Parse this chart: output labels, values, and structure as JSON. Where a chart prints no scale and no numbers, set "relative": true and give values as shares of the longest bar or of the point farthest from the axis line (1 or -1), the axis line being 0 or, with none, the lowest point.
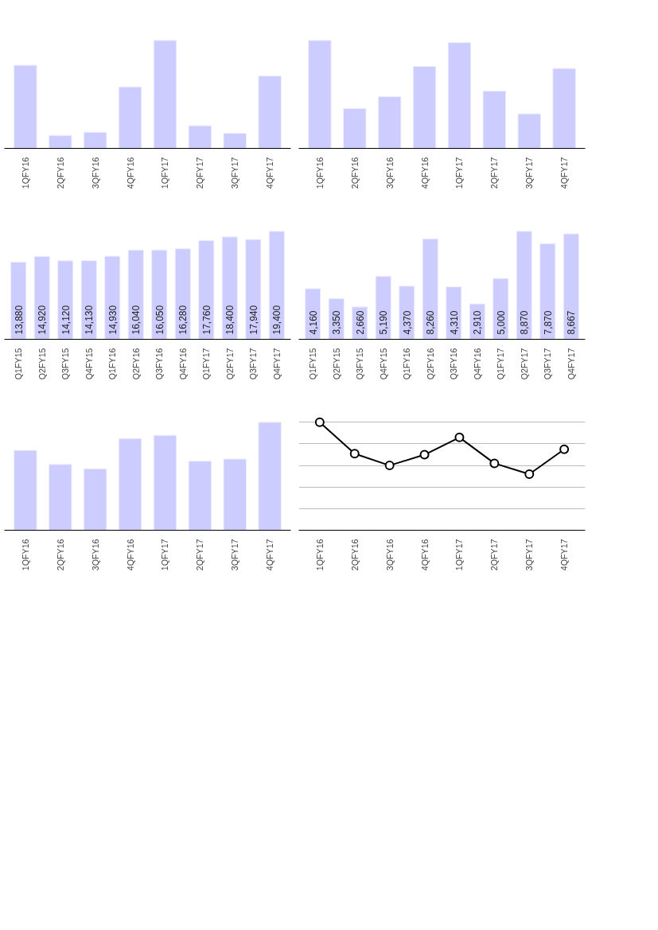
{
  "chart_data": [
    {
      "type": "bar",
      "relative": true,
      "categories": [
        "1QFY16",
        "2QFY16",
        "3QFY16",
        "4QFY16",
        "1QFY17",
        "2QFY17",
        "3QFY17",
        "4QFY17"
      ],
      "values": [
        0.77,
        0.12,
        0.15,
        0.57,
        1,
        0.21,
        0.14,
        0.67
      ],
      "color": "#ccccff"
    },
    {
      "type": "bar",
      "relative": true,
      "categories": [
        "1QFY16",
        "2QFY16",
        "3QFY16",
        "4QFY16",
        "1QFY17",
        "2QFY17",
        "3QFY17",
        "4QFY17"
      ],
      "values": [
        1,
        0.37,
        0.48,
        0.76,
        0.98,
        0.53,
        0.32,
        0.74
      ],
      "color": "#ccccff"
    },
    {
      "type": "bar",
      "tick_labels": "x",
      "categories": [
        "Q1FY15",
        "Q2FY15",
        "Q3FY15",
        "Q4FY15",
        "Q1FY16",
        "Q2FY16",
        "Q3FY16",
        "Q4FY16",
        "Q1FY17",
        "Q2FY17",
        "Q3FY17",
        "Q4FY17"
      ],
      "values": [
        13880,
        14920,
        14120,
        14130,
        14930,
        16040,
        16050,
        16280,
        17760,
        18400,
        17940,
        19400
      ],
      "value_labels": [
        "13,880",
        "14,920",
        "14,120",
        "14,130",
        "14,930",
        "16,040",
        "16,050",
        "16,280",
        "17,760",
        "18,400",
        "17,940",
        "19,400"
      ],
      "color": "#ccccff"
    },
    {
      "type": "bar",
      "tick_labels": "x",
      "categories": [
        "Q1FY15",
        "Q2FY15",
        "Q3FY15",
        "Q4FY15",
        "Q1FY16",
        "Q2FY16",
        "Q3FY16",
        "Q4FY16",
        "Q1FY17",
        "Q2FY17",
        "Q3FY17",
        "Q4FY17"
      ],
      "values": [
        4160,
        3350,
        2660,
        5190,
        4370,
        8260,
        4310,
        2910,
        5000,
        8870,
        7870,
        8667
      ],
      "value_labels": [
        "4,160",
        "3,350",
        "2,660",
        "5,190",
        "4,370",
        "8,260",
        "4,310",
        "2,910",
        "5,000",
        "8,870",
        "7,870",
        "8,667"
      ],
      "color": "#ccccff"
    },
    {
      "type": "bar",
      "relative": true,
      "categories": [
        "1QFY16",
        "2QFY16",
        "3QFY16",
        "4QFY16",
        "1QFY17",
        "2QFY17",
        "3QFY17",
        "4QFY17"
      ],
      "values": [
        0.74,
        0.61,
        0.57,
        0.85,
        0.88,
        0.64,
        0.66,
        1
      ],
      "color": "#ccccff"
    },
    {
      "type": "line",
      "relative": true,
      "grid": "y",
      "marker": "circle",
      "categories": [
        "1QFY16",
        "2QFY16",
        "3QFY16",
        "4QFY16",
        "1QFY17",
        "2QFY17",
        "3QFY17",
        "4QFY17"
      ],
      "values": [
        1,
        0.71,
        0.6,
        0.7,
        0.86,
        0.62,
        0.52,
        0.75
      ],
      "color": "#000000"
    }
  ]
}
